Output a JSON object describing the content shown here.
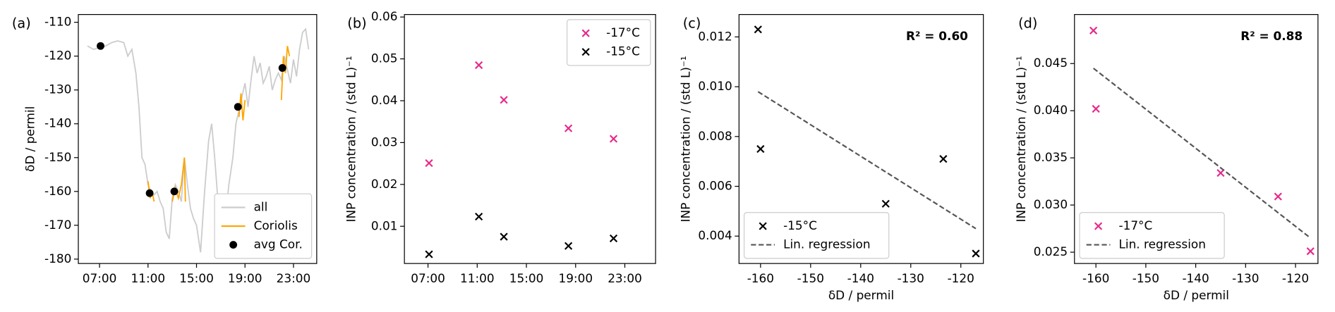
{
  "chart_data": [
    {
      "type": "line",
      "label": "(a)",
      "ylabel": "δD / permil",
      "xlim": [
        "05:15",
        "24:55"
      ],
      "xticks": [
        "07:00",
        "11:00",
        "15:00",
        "19:00",
        "23:00"
      ],
      "ylim": [
        -181.3,
        -107.7
      ],
      "yticks": [
        -180,
        -170,
        -160,
        -150,
        -140,
        -130,
        -120,
        -110
      ],
      "legend": "lower right",
      "series": [
        {
          "name": "all",
          "type": "line",
          "color": "#cccccc",
          "x": [
            "06:00",
            "06:30",
            "07:00",
            "07:30",
            "08:00",
            "08:30",
            "09:00",
            "09:20",
            "09:40",
            "10:00",
            "10:15",
            "10:30",
            "10:45",
            "11:00",
            "11:15",
            "11:30",
            "11:45",
            "12:00",
            "12:15",
            "12:30",
            "12:45",
            "13:00",
            "13:15",
            "13:30",
            "13:45",
            "14:00",
            "14:15",
            "14:30",
            "14:45",
            "15:00",
            "15:20",
            "15:40",
            "16:00",
            "16:15",
            "16:30",
            "16:45",
            "17:00",
            "17:20",
            "17:40",
            "18:00",
            "18:15",
            "18:30",
            "18:45",
            "19:00",
            "19:15",
            "19:30",
            "19:45",
            "20:00",
            "20:15",
            "20:30",
            "20:45",
            "21:00",
            "21:15",
            "21:30",
            "21:45",
            "22:00",
            "22:15",
            "22:30",
            "22:45",
            "23:00",
            "23:15",
            "23:30",
            "23:45",
            "24:00",
            "24:15"
          ],
          "values": [
            -117,
            -118,
            -117.5,
            -117,
            -116,
            -115.5,
            -116,
            -120,
            -118,
            -125,
            -135,
            -150,
            -152,
            -158,
            -160,
            -161,
            -160,
            -163,
            -165,
            -172,
            -174,
            -162,
            -158,
            -160,
            -163,
            -150,
            -158,
            -165,
            -168,
            -170,
            -178,
            -160,
            -145,
            -140,
            -150,
            -162,
            -165,
            -170,
            -158,
            -150,
            -140,
            -136,
            -132,
            -128,
            -135,
            -127,
            -120,
            -125,
            -122,
            -128,
            -126,
            -123,
            -130,
            -127,
            -125,
            -127,
            -120,
            -124,
            -128,
            -121,
            -126,
            -118,
            -113,
            -112,
            -118
          ]
        },
        {
          "name": "Coriolis",
          "type": "line",
          "color": "#ffa500",
          "x": [
            "11:00",
            "11:10",
            "11:20",
            "11:30",
            "11:35",
            "13:00",
            "13:15",
            "13:30",
            "13:45",
            "14:00",
            "14:05",
            "14:10",
            "18:30",
            "18:40",
            "18:50",
            "19:00",
            "19:05",
            "22:00",
            "22:10",
            "22:20",
            "22:30",
            "22:40"
          ],
          "values": [
            -157,
            -162,
            -160,
            -163,
            null,
            -163,
            -159,
            -162,
            -158,
            -150,
            -163,
            null,
            -138,
            -131,
            -139,
            -133,
            null,
            -133,
            -120,
            -125,
            -117,
            -120
          ]
        },
        {
          "name": "avg Cor.",
          "type": "scatter",
          "marker": "o",
          "color": "#000000",
          "x": [
            "07:05",
            "11:08",
            "13:10",
            "18:25",
            "22:05"
          ],
          "values": [
            -117,
            -160.5,
            -160,
            -135,
            -123.5
          ]
        }
      ]
    },
    {
      "type": "scatter",
      "label": "(b)",
      "ylabel": "INP concentration / (std L)⁻¹",
      "xlim": [
        "05:05",
        "25:30"
      ],
      "xticks": [
        "07:00",
        "11:00",
        "15:00",
        "19:00",
        "23:00"
      ],
      "ylim": [
        0.0011,
        0.0606
      ],
      "yticks": [
        0.01,
        0.02,
        0.03,
        0.04,
        0.05,
        0.06
      ],
      "legend": "upper right",
      "series": [
        {
          "name": "-17°C",
          "type": "scatter",
          "marker": "x",
          "color": "#e7298a",
          "x": [
            "07:05",
            "11:08",
            "13:10",
            "18:25",
            "22:05"
          ],
          "values": [
            0.0251,
            0.0485,
            0.0402,
            0.0334,
            0.0309
          ]
        },
        {
          "name": "-15°C",
          "type": "scatter",
          "marker": "x",
          "color": "#000000",
          "x": [
            "07:05",
            "11:08",
            "13:10",
            "18:25",
            "22:05"
          ],
          "values": [
            0.0033,
            0.0123,
            0.0075,
            0.0053,
            0.0071
          ]
        }
      ]
    },
    {
      "type": "scatter",
      "label": "(c)",
      "xlabel": "δD / permil",
      "ylabel": "INP concentration / (std L)⁻¹",
      "xlim": [
        -164.3,
        -115.5
      ],
      "xticks": [
        -160,
        -150,
        -140,
        -130,
        -120
      ],
      "ylim": [
        0.0029,
        0.0129
      ],
      "yticks": [
        0.004,
        0.006,
        0.008,
        {
          "value": 0.01,
          "label": "0.010"
        },
        0.012
      ],
      "legend": "lower left",
      "annotation": "R² = 0.60",
      "series": [
        {
          "name": "-15°C",
          "type": "scatter",
          "marker": "x",
          "color": "#000000",
          "x": [
            -160.5,
            -160,
            -135,
            -123.5,
            -117
          ],
          "values": [
            0.0123,
            0.0075,
            0.0053,
            0.0071,
            0.0033
          ]
        },
        {
          "name": "Lin. regression",
          "type": "line",
          "linestyle": "dashed",
          "color": "#555555",
          "x": [
            -160.5,
            -117
          ],
          "values": [
            0.0098,
            0.0043
          ]
        }
      ]
    },
    {
      "type": "scatter",
      "label": "(d)",
      "xlabel": "δD / permil",
      "ylabel": "INP concentration / (std L)⁻¹",
      "xlim": [
        -164.3,
        -115.5
      ],
      "xticks": [
        -160,
        -150,
        -140,
        -130,
        -120
      ],
      "ylim": [
        0.0238,
        0.0502
      ],
      "yticks": [
        0.025,
        {
          "value": 0.03,
          "label": "0.030"
        },
        0.035,
        {
          "value": 0.04,
          "label": "0.040"
        },
        0.045
      ],
      "legend": "lower left",
      "annotation": "R² = 0.88",
      "series": [
        {
          "name": "-17°C",
          "type": "scatter",
          "marker": "x",
          "color": "#e7298a",
          "x": [
            -160.5,
            -160,
            -135,
            -123.5,
            -117
          ],
          "values": [
            0.0485,
            0.0402,
            0.0334,
            0.0309,
            0.0251
          ]
        },
        {
          "name": "Lin. regression",
          "type": "line",
          "linestyle": "dashed",
          "color": "#555555",
          "x": [
            -160.5,
            -117
          ],
          "values": [
            0.0445,
            0.0265
          ]
        }
      ]
    }
  ]
}
